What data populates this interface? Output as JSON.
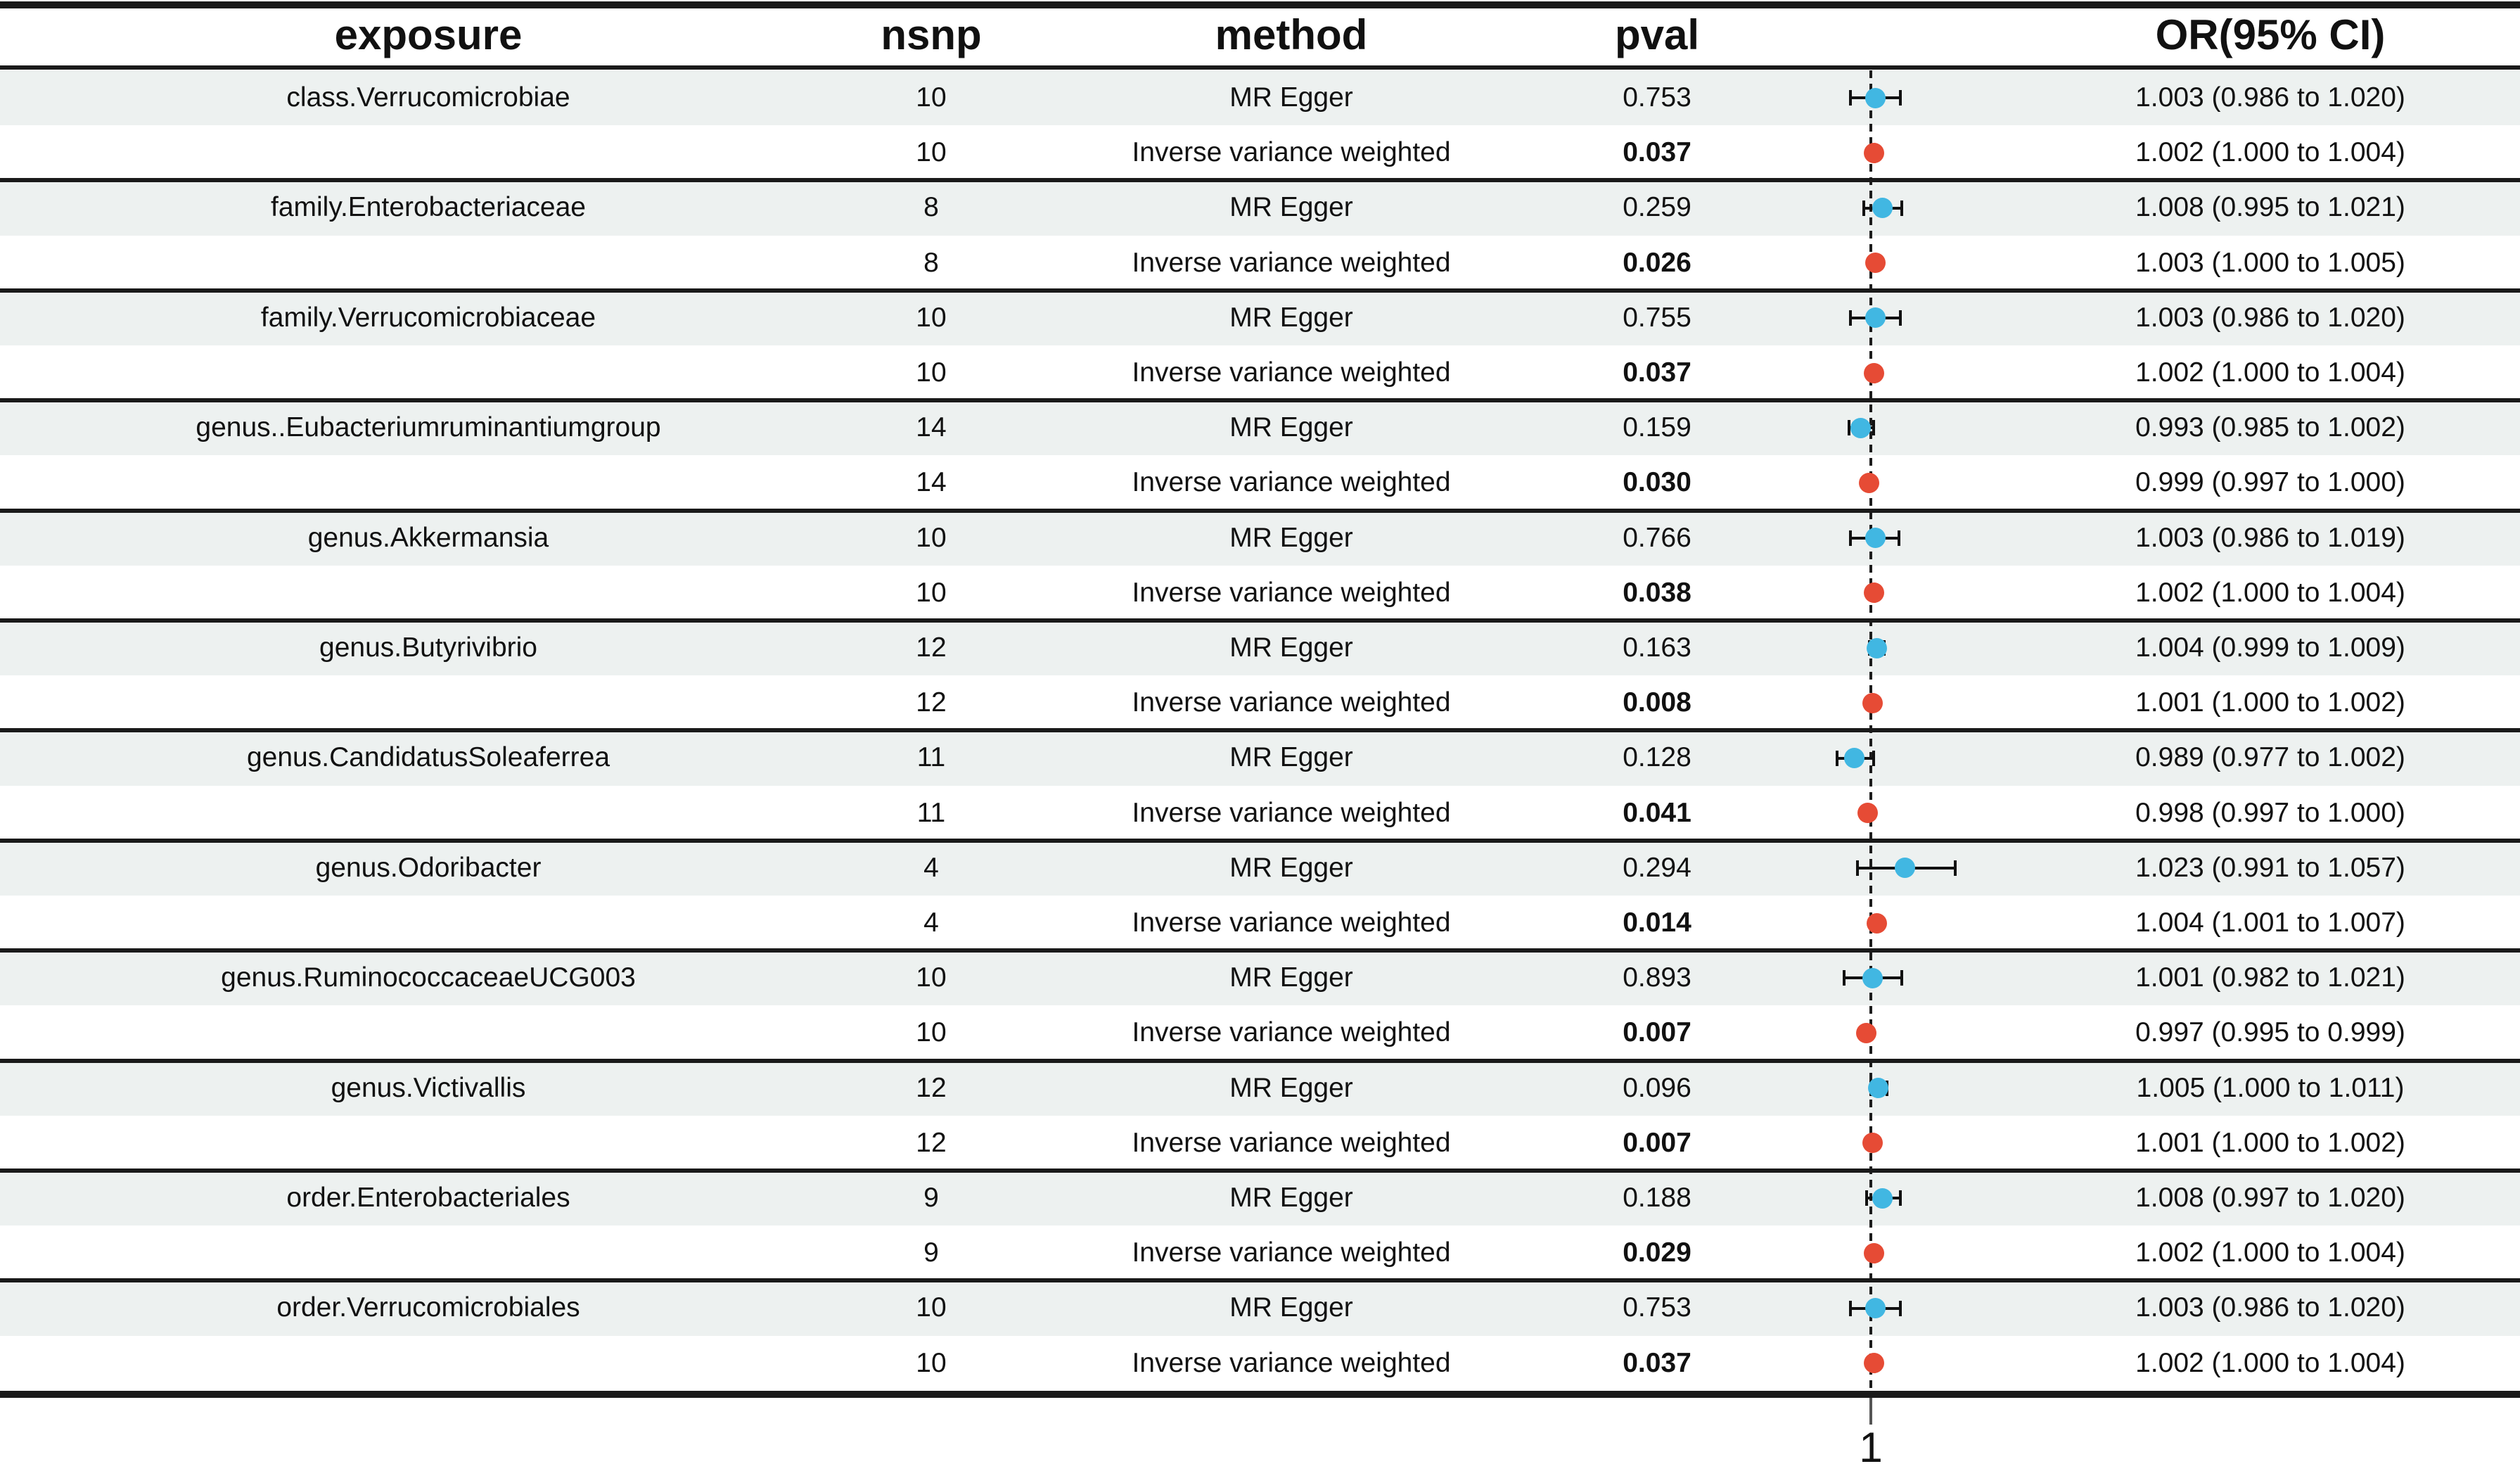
{
  "chart_data": {
    "type": "table",
    "subtype": "forest-plot",
    "columns": [
      "exposure",
      "nsnp",
      "method",
      "pval",
      "OR(95% CI)"
    ],
    "or_axis": {
      "reference_value": 1,
      "tick_label": "1"
    },
    "colors": {
      "mr_egger_point": "#41b7e2",
      "ivw_point": "#e64b35",
      "row_shade": "#edf1f0",
      "line": "#1a1a1a"
    },
    "groups": [
      {
        "exposure": "class.Verrucomicrobiae",
        "rows": [
          {
            "nsnp": "10",
            "method": "MR Egger",
            "pval": "0.753",
            "pval_bold": false,
            "or": 1.003,
            "lo": 0.986,
            "hi": 1.02,
            "or_label": "1.003 (0.986 to 1.020)"
          },
          {
            "nsnp": "10",
            "method": "Inverse variance weighted",
            "pval": "0.037",
            "pval_bold": true,
            "or": 1.002,
            "lo": 1.0,
            "hi": 1.004,
            "or_label": "1.002 (1.000 to 1.004)"
          }
        ]
      },
      {
        "exposure": "family.Enterobacteriaceae",
        "rows": [
          {
            "nsnp": "8",
            "method": "MR Egger",
            "pval": "0.259",
            "pval_bold": false,
            "or": 1.008,
            "lo": 0.995,
            "hi": 1.021,
            "or_label": "1.008 (0.995 to 1.021)"
          },
          {
            "nsnp": "8",
            "method": "Inverse variance weighted",
            "pval": "0.026",
            "pval_bold": true,
            "or": 1.003,
            "lo": 1.0,
            "hi": 1.005,
            "or_label": "1.003 (1.000 to 1.005)"
          }
        ]
      },
      {
        "exposure": "family.Verrucomicrobiaceae",
        "rows": [
          {
            "nsnp": "10",
            "method": "MR Egger",
            "pval": "0.755",
            "pval_bold": false,
            "or": 1.003,
            "lo": 0.986,
            "hi": 1.02,
            "or_label": "1.003 (0.986 to 1.020)"
          },
          {
            "nsnp": "10",
            "method": "Inverse variance weighted",
            "pval": "0.037",
            "pval_bold": true,
            "or": 1.002,
            "lo": 1.0,
            "hi": 1.004,
            "or_label": "1.002 (1.000 to 1.004)"
          }
        ]
      },
      {
        "exposure": "genus..Eubacteriumruminantiumgroup",
        "rows": [
          {
            "nsnp": "14",
            "method": "MR Egger",
            "pval": "0.159",
            "pval_bold": false,
            "or": 0.993,
            "lo": 0.985,
            "hi": 1.002,
            "or_label": "0.993 (0.985 to 1.002)"
          },
          {
            "nsnp": "14",
            "method": "Inverse variance weighted",
            "pval": "0.030",
            "pval_bold": true,
            "or": 0.999,
            "lo": 0.997,
            "hi": 1.0,
            "or_label": "0.999 (0.997 to 1.000)"
          }
        ]
      },
      {
        "exposure": "genus.Akkermansia",
        "rows": [
          {
            "nsnp": "10",
            "method": "MR Egger",
            "pval": "0.766",
            "pval_bold": false,
            "or": 1.003,
            "lo": 0.986,
            "hi": 1.019,
            "or_label": "1.003 (0.986 to 1.019)"
          },
          {
            "nsnp": "10",
            "method": "Inverse variance weighted",
            "pval": "0.038",
            "pval_bold": true,
            "or": 1.002,
            "lo": 1.0,
            "hi": 1.004,
            "or_label": "1.002 (1.000 to 1.004)"
          }
        ]
      },
      {
        "exposure": "genus.Butyrivibrio",
        "rows": [
          {
            "nsnp": "12",
            "method": "MR Egger",
            "pval": "0.163",
            "pval_bold": false,
            "or": 1.004,
            "lo": 0.999,
            "hi": 1.009,
            "or_label": "1.004 (0.999 to 1.009)"
          },
          {
            "nsnp": "12",
            "method": "Inverse variance weighted",
            "pval": "0.008",
            "pval_bold": true,
            "or": 1.001,
            "lo": 1.0,
            "hi": 1.002,
            "or_label": "1.001 (1.000 to 1.002)"
          }
        ]
      },
      {
        "exposure": "genus.CandidatusSoleaferrea",
        "rows": [
          {
            "nsnp": "11",
            "method": "MR Egger",
            "pval": "0.128",
            "pval_bold": false,
            "or": 0.989,
            "lo": 0.977,
            "hi": 1.002,
            "or_label": "0.989 (0.977 to 1.002)"
          },
          {
            "nsnp": "11",
            "method": "Inverse variance weighted",
            "pval": "0.041",
            "pval_bold": true,
            "or": 0.998,
            "lo": 0.997,
            "hi": 1.0,
            "or_label": "0.998 (0.997 to 1.000)"
          }
        ]
      },
      {
        "exposure": "genus.Odoribacter",
        "rows": [
          {
            "nsnp": "4",
            "method": "MR Egger",
            "pval": "0.294",
            "pval_bold": false,
            "or": 1.023,
            "lo": 0.991,
            "hi": 1.057,
            "or_label": "1.023 (0.991 to 1.057)"
          },
          {
            "nsnp": "4",
            "method": "Inverse variance weighted",
            "pval": "0.014",
            "pval_bold": true,
            "or": 1.004,
            "lo": 1.001,
            "hi": 1.007,
            "or_label": "1.004 (1.001 to 1.007)"
          }
        ]
      },
      {
        "exposure": "genus.RuminococcaceaeUCG003",
        "rows": [
          {
            "nsnp": "10",
            "method": "MR Egger",
            "pval": "0.893",
            "pval_bold": false,
            "or": 1.001,
            "lo": 0.982,
            "hi": 1.021,
            "or_label": "1.001 (0.982 to 1.021)"
          },
          {
            "nsnp": "10",
            "method": "Inverse variance weighted",
            "pval": "0.007",
            "pval_bold": true,
            "or": 0.997,
            "lo": 0.995,
            "hi": 0.999,
            "or_label": "0.997 (0.995 to 0.999)"
          }
        ]
      },
      {
        "exposure": "genus.Victivallis",
        "rows": [
          {
            "nsnp": "12",
            "method": "MR Egger",
            "pval": "0.096",
            "pval_bold": false,
            "or": 1.005,
            "lo": 1.0,
            "hi": 1.011,
            "or_label": "1.005 (1.000 to 1.011)"
          },
          {
            "nsnp": "12",
            "method": "Inverse variance weighted",
            "pval": "0.007",
            "pval_bold": true,
            "or": 1.001,
            "lo": 1.0,
            "hi": 1.002,
            "or_label": "1.001 (1.000 to 1.002)"
          }
        ]
      },
      {
        "exposure": "order.Enterobacteriales",
        "rows": [
          {
            "nsnp": "9",
            "method": "MR Egger",
            "pval": "0.188",
            "pval_bold": false,
            "or": 1.008,
            "lo": 0.997,
            "hi": 1.02,
            "or_label": "1.008 (0.997 to 1.020)"
          },
          {
            "nsnp": "9",
            "method": "Inverse variance weighted",
            "pval": "0.029",
            "pval_bold": true,
            "or": 1.002,
            "lo": 1.0,
            "hi": 1.004,
            "or_label": "1.002 (1.000 to 1.004)"
          }
        ]
      },
      {
        "exposure": "order.Verrucomicrobiales",
        "rows": [
          {
            "nsnp": "10",
            "method": "MR Egger",
            "pval": "0.753",
            "pval_bold": false,
            "or": 1.003,
            "lo": 0.986,
            "hi": 1.02,
            "or_label": "1.003 (0.986 to 1.020)"
          },
          {
            "nsnp": "10",
            "method": "Inverse variance weighted",
            "pval": "0.037",
            "pval_bold": true,
            "or": 1.002,
            "lo": 1.0,
            "hi": 1.004,
            "or_label": "1.002 (1.000 to 1.004)"
          }
        ]
      }
    ]
  }
}
